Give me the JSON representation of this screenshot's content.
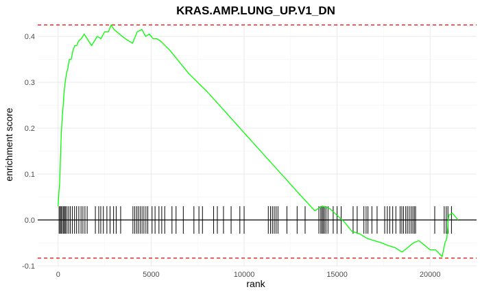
{
  "chart_data": {
    "type": "line",
    "title": "KRAS.AMP.LUNG_UP.V1_DN",
    "xlabel": "rank",
    "ylabel": "enrichment score",
    "xlim": [
      -1100,
      22500
    ],
    "ylim": [
      -0.1,
      0.43
    ],
    "xticks": [
      0,
      5000,
      10000,
      15000,
      20000
    ],
    "xtick_labels": [
      "0",
      "5000",
      "10000",
      "15000",
      "20000"
    ],
    "yticks": [
      -0.1,
      0.0,
      0.1,
      0.2,
      0.3,
      0.4
    ],
    "ytick_labels": [
      "-0.1",
      "0.0",
      "0.1",
      "0.2",
      "0.3",
      "0.4"
    ],
    "grid": true,
    "colors": {
      "curve": "#00ff00",
      "threshold": "#ff0000",
      "zero_line": "#000000",
      "gene_ticks": "#000000",
      "grid_major": "#ebebeb",
      "grid_minor": "#f5f5f5"
    },
    "series": [
      {
        "x": [
          0,
          40,
          80,
          120,
          170,
          220,
          270,
          320,
          380,
          450,
          520,
          600,
          700,
          800,
          900,
          1000,
          1100,
          1250,
          1400,
          1550,
          1800,
          2100,
          2300,
          2500,
          2700,
          2850,
          3000,
          3300,
          3600,
          3800,
          4000,
          4250,
          4500,
          4700,
          4900,
          5100,
          5300,
          5500,
          6000,
          6500,
          7000,
          7500,
          8000,
          9000,
          10000,
          11000,
          12000,
          13000,
          13800,
          14200,
          14600,
          15000,
          15400,
          15800,
          16200,
          16600,
          17000,
          17400,
          17700,
          18100,
          18500,
          18800,
          19100,
          19400,
          19700,
          20000,
          20300,
          20650,
          20800,
          20900,
          21000,
          21200,
          21500
        ],
        "y": [
          0.03,
          0.06,
          0.08,
          0.13,
          0.19,
          0.225,
          0.25,
          0.28,
          0.3,
          0.32,
          0.33,
          0.35,
          0.35,
          0.37,
          0.38,
          0.38,
          0.39,
          0.395,
          0.405,
          0.395,
          0.38,
          0.4,
          0.395,
          0.41,
          0.41,
          0.425,
          0.415,
          0.405,
          0.395,
          0.39,
          0.385,
          0.41,
          0.415,
          0.4,
          0.405,
          0.395,
          0.395,
          0.39,
          0.37,
          0.345,
          0.32,
          0.3,
          0.28,
          0.235,
          0.19,
          0.145,
          0.1,
          0.055,
          0.02,
          0.03,
          0.025,
          0.01,
          -0.005,
          -0.025,
          -0.03,
          -0.04,
          -0.045,
          -0.05,
          -0.055,
          -0.06,
          -0.07,
          -0.06,
          -0.05,
          -0.045,
          -0.055,
          -0.065,
          -0.065,
          -0.08,
          -0.05,
          -0.04,
          0.01,
          0.015,
          0.0
        ]
      }
    ],
    "hit_ranks": [
      50,
      110,
      160,
      220,
      290,
      340,
      390,
      470,
      560,
      650,
      760,
      880,
      990,
      1110,
      1230,
      1330,
      1440,
      1560,
      2000,
      2180,
      2290,
      2430,
      2620,
      2790,
      2980,
      3120,
      3360,
      4020,
      4120,
      4220,
      4310,
      4410,
      4510,
      4610,
      4720,
      4820,
      5050,
      5210,
      5420,
      5570,
      5730,
      6120,
      6340,
      6730,
      7300,
      7570,
      7760,
      8360,
      8560,
      8890,
      9300,
      9770,
      10000,
      11300,
      11420,
      11520,
      11620,
      11720,
      11820,
      12300,
      12850,
      13280,
      14020,
      14120,
      14190,
      14250,
      14320,
      14400,
      14510,
      14790,
      15000,
      15220,
      15860,
      16080,
      16440,
      16560,
      16660,
      16870,
      17150,
      17560,
      17700,
      17830,
      17990,
      18160,
      18390,
      18480,
      18570,
      18690,
      18780,
      18880,
      18980,
      19070,
      19150,
      19220,
      20250,
      20760,
      20870,
      20960,
      21150
    ],
    "upper_threshold": 0.425,
    "lower_threshold": -0.083
  }
}
